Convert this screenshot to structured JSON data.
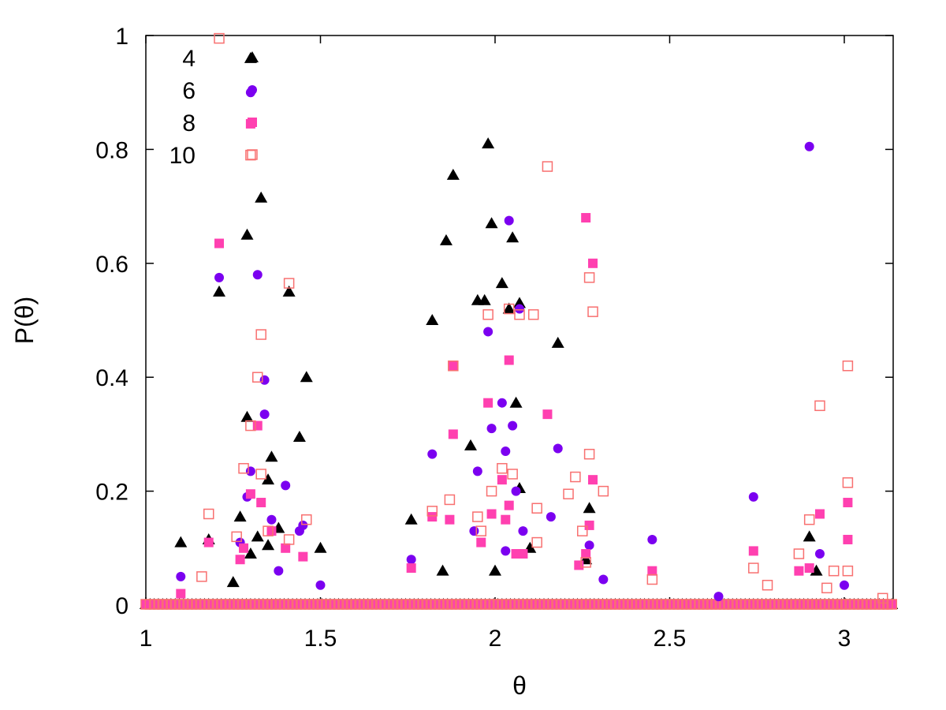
{
  "chart_data": {
    "type": "scatter",
    "title": "",
    "xlabel": "θ",
    "ylabel": "P(θ)",
    "xlim": [
      1,
      3.14
    ],
    "ylim": [
      0,
      1
    ],
    "x_ticks": [
      "1",
      "1.5",
      "2",
      "2.5",
      "3"
    ],
    "y_ticks": [
      "0",
      "0.2",
      "0.4",
      "0.6",
      "0.8",
      "1"
    ],
    "grid": false,
    "legend_position": "top-left",
    "series": [
      {
        "name": "4",
        "marker": "triangle",
        "color": "#000000",
        "points": [
          [
            1.1,
            0.11
          ],
          [
            1.18,
            0.115
          ],
          [
            1.21,
            0.55
          ],
          [
            1.27,
            0.155
          ],
          [
            1.29,
            0.65
          ],
          [
            1.29,
            0.33
          ],
          [
            1.3,
            0.96
          ],
          [
            1.32,
            0.12
          ],
          [
            1.33,
            0.715
          ],
          [
            1.35,
            0.22
          ],
          [
            1.36,
            0.26
          ],
          [
            1.41,
            0.55
          ],
          [
            1.44,
            0.295
          ],
          [
            1.46,
            0.4
          ],
          [
            1.5,
            0.1
          ],
          [
            1.35,
            0.105
          ],
          [
            1.38,
            0.135
          ],
          [
            1.25,
            0.04
          ],
          [
            1.3,
            0.09
          ],
          [
            1.76,
            0.15
          ],
          [
            1.82,
            0.5
          ],
          [
            1.86,
            0.64
          ],
          [
            1.88,
            0.755
          ],
          [
            1.93,
            0.28
          ],
          [
            1.95,
            0.535
          ],
          [
            1.97,
            0.535
          ],
          [
            1.98,
            0.81
          ],
          [
            1.99,
            0.67
          ],
          [
            2.02,
            0.565
          ],
          [
            2.04,
            0.52
          ],
          [
            2.05,
            0.645
          ],
          [
            2.06,
            0.355
          ],
          [
            2.07,
            0.205
          ],
          [
            2.07,
            0.53
          ],
          [
            2.18,
            0.46
          ],
          [
            2.27,
            0.17
          ],
          [
            2.26,
            0.08
          ],
          [
            1.85,
            0.06
          ],
          [
            2.0,
            0.06
          ],
          [
            2.1,
            0.1
          ],
          [
            2.9,
            0.12
          ],
          [
            2.92,
            0.06
          ]
        ]
      },
      {
        "name": "6",
        "marker": "circle",
        "color": "#7b00f0",
        "points": [
          [
            1.1,
            0.05
          ],
          [
            1.21,
            0.575
          ],
          [
            1.27,
            0.11
          ],
          [
            1.3,
            0.235
          ],
          [
            1.3,
            0.9
          ],
          [
            1.29,
            0.19
          ],
          [
            1.32,
            0.58
          ],
          [
            1.34,
            0.395
          ],
          [
            1.34,
            0.335
          ],
          [
            1.36,
            0.15
          ],
          [
            1.4,
            0.21
          ],
          [
            1.44,
            0.13
          ],
          [
            1.45,
            0.14
          ],
          [
            1.5,
            0.035
          ],
          [
            1.38,
            0.06
          ],
          [
            1.76,
            0.08
          ],
          [
            1.82,
            0.265
          ],
          [
            1.88,
            0.42
          ],
          [
            1.94,
            0.13
          ],
          [
            1.95,
            0.235
          ],
          [
            1.98,
            0.48
          ],
          [
            1.99,
            0.31
          ],
          [
            2.02,
            0.355
          ],
          [
            2.03,
            0.27
          ],
          [
            2.04,
            0.675
          ],
          [
            2.05,
            0.315
          ],
          [
            2.06,
            0.2
          ],
          [
            2.07,
            0.52
          ],
          [
            2.08,
            0.13
          ],
          [
            2.03,
            0.095
          ],
          [
            2.16,
            0.155
          ],
          [
            2.18,
            0.275
          ],
          [
            2.27,
            0.105
          ],
          [
            2.31,
            0.045
          ],
          [
            2.45,
            0.115
          ],
          [
            2.64,
            0.015
          ],
          [
            2.74,
            0.19
          ],
          [
            2.9,
            0.805
          ],
          [
            2.93,
            0.09
          ],
          [
            3.0,
            0.035
          ]
        ]
      },
      {
        "name": "8",
        "marker": "square",
        "color": "#ff40b0",
        "points": [
          [
            1.1,
            0.02
          ],
          [
            1.18,
            0.11
          ],
          [
            1.21,
            0.635
          ],
          [
            1.28,
            0.1
          ],
          [
            1.3,
            0.195
          ],
          [
            1.3,
            0.845
          ],
          [
            1.32,
            0.315
          ],
          [
            1.33,
            0.18
          ],
          [
            1.36,
            0.13
          ],
          [
            1.4,
            0.1
          ],
          [
            1.45,
            0.085
          ],
          [
            1.27,
            0.08
          ],
          [
            1.76,
            0.065
          ],
          [
            1.82,
            0.155
          ],
          [
            1.88,
            0.3
          ],
          [
            1.87,
            0.15
          ],
          [
            1.88,
            0.42
          ],
          [
            1.96,
            0.11
          ],
          [
            1.98,
            0.355
          ],
          [
            1.99,
            0.16
          ],
          [
            2.02,
            0.22
          ],
          [
            2.03,
            0.15
          ],
          [
            2.04,
            0.43
          ],
          [
            2.04,
            0.175
          ],
          [
            2.06,
            0.09
          ],
          [
            2.08,
            0.09
          ],
          [
            2.15,
            0.335
          ],
          [
            2.24,
            0.07
          ],
          [
            2.26,
            0.68
          ],
          [
            2.27,
            0.14
          ],
          [
            2.28,
            0.6
          ],
          [
            2.28,
            0.22
          ],
          [
            2.26,
            0.09
          ],
          [
            2.45,
            0.06
          ],
          [
            2.74,
            0.095
          ],
          [
            2.87,
            0.06
          ],
          [
            2.9,
            0.065
          ],
          [
            2.93,
            0.16
          ],
          [
            3.01,
            0.18
          ],
          [
            3.01,
            0.115
          ]
        ]
      },
      {
        "name": "10",
        "marker": "open-square",
        "color": "#f87070",
        "points": [
          [
            1.16,
            0.05
          ],
          [
            1.18,
            0.16
          ],
          [
            1.21,
            0.995
          ],
          [
            1.26,
            0.12
          ],
          [
            1.28,
            0.24
          ],
          [
            1.3,
            0.79
          ],
          [
            1.3,
            0.315
          ],
          [
            1.32,
            0.4
          ],
          [
            1.33,
            0.475
          ],
          [
            1.33,
            0.23
          ],
          [
            1.35,
            0.13
          ],
          [
            1.41,
            0.565
          ],
          [
            1.41,
            0.115
          ],
          [
            1.46,
            0.15
          ],
          [
            1.82,
            0.165
          ],
          [
            1.87,
            0.185
          ],
          [
            1.88,
            0.42
          ],
          [
            1.95,
            0.155
          ],
          [
            1.96,
            0.13
          ],
          [
            1.98,
            0.51
          ],
          [
            1.99,
            0.2
          ],
          [
            2.02,
            0.24
          ],
          [
            2.04,
            0.52
          ],
          [
            2.05,
            0.23
          ],
          [
            2.07,
            0.51
          ],
          [
            2.11,
            0.51
          ],
          [
            2.12,
            0.17
          ],
          [
            2.12,
            0.11
          ],
          [
            2.15,
            0.77
          ],
          [
            2.21,
            0.195
          ],
          [
            2.23,
            0.225
          ],
          [
            2.25,
            0.13
          ],
          [
            2.26,
            0.075
          ],
          [
            2.27,
            0.265
          ],
          [
            2.27,
            0.575
          ],
          [
            2.28,
            0.515
          ],
          [
            2.31,
            0.2
          ],
          [
            2.45,
            0.045
          ],
          [
            2.74,
            0.065
          ],
          [
            2.78,
            0.035
          ],
          [
            2.87,
            0.09
          ],
          [
            2.9,
            0.15
          ],
          [
            2.93,
            0.35
          ],
          [
            2.95,
            0.03
          ],
          [
            2.97,
            0.06
          ],
          [
            3.01,
            0.42
          ],
          [
            3.01,
            0.215
          ],
          [
            3.01,
            0.06
          ],
          [
            3.11,
            0.012
          ]
        ]
      }
    ]
  }
}
